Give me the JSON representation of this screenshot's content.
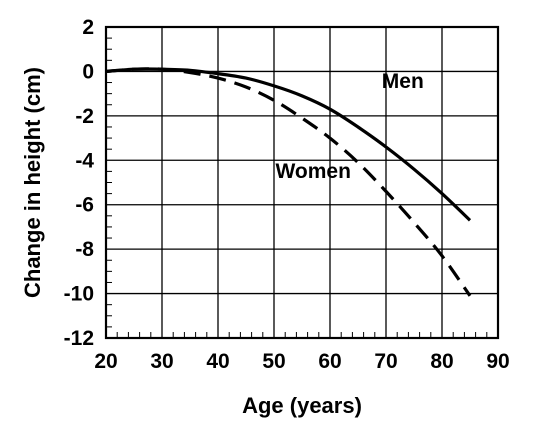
{
  "chart_data": {
    "type": "line",
    "title": "",
    "xlabel": "Age (years)",
    "ylabel": "Change in height (cm)",
    "xlim": [
      20,
      90
    ],
    "ylim": [
      -12,
      2
    ],
    "x_ticks": [
      20,
      30,
      40,
      50,
      60,
      70,
      80,
      90
    ],
    "y_ticks": [
      2,
      0,
      -2,
      -4,
      -6,
      -8,
      -10,
      -12
    ],
    "grid": true,
    "series": [
      {
        "name": "Men",
        "line_style": "solid",
        "x": [
          20,
          25,
          30,
          35,
          40,
          45,
          50,
          55,
          60,
          65,
          70,
          75,
          80,
          85
        ],
        "y": [
          0,
          0.1,
          0.1,
          0.05,
          -0.1,
          -0.3,
          -0.65,
          -1.1,
          -1.7,
          -2.5,
          -3.4,
          -4.4,
          -5.5,
          -6.7
        ]
      },
      {
        "name": "Women",
        "line_style": "dashed",
        "x": [
          20,
          25,
          30,
          35,
          40,
          45,
          50,
          55,
          60,
          65,
          70,
          75,
          80,
          85
        ],
        "y": [
          0,
          0.1,
          0.1,
          -0.05,
          -0.3,
          -0.7,
          -1.3,
          -2.1,
          -3.0,
          -4.1,
          -5.4,
          -6.8,
          -8.3,
          -10.1
        ]
      }
    ],
    "annotations": [
      {
        "text": "Men",
        "x": 73,
        "y": -0.75
      },
      {
        "text": "Women",
        "x": 57,
        "y": -4.8
      }
    ]
  }
}
